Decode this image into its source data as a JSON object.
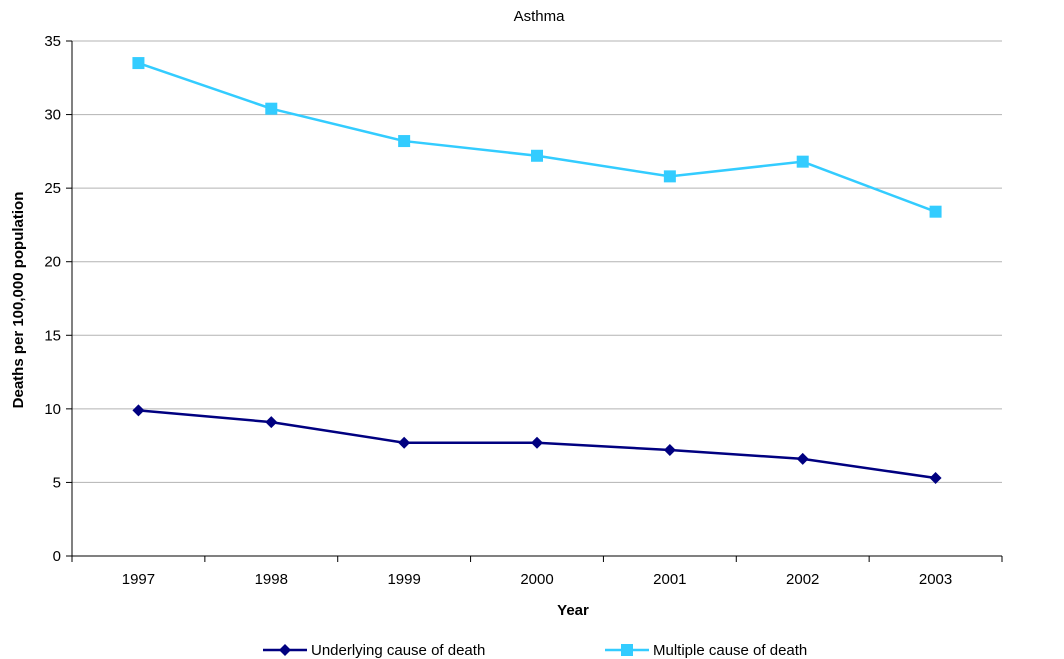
{
  "chart_data": {
    "type": "line",
    "title": "Asthma",
    "xlabel": "Year",
    "ylabel": "Deaths per 100,000 population",
    "categories": [
      "1997",
      "1998",
      "1999",
      "2000",
      "2001",
      "2002",
      "2003"
    ],
    "ylim": [
      0,
      35
    ],
    "yticks": [
      0,
      5,
      10,
      15,
      20,
      25,
      30,
      35
    ],
    "grid": true,
    "legend_position": "bottom",
    "series": [
      {
        "name": "Underlying cause of death",
        "values": [
          9.9,
          9.1,
          7.7,
          7.7,
          7.2,
          6.6,
          5.3
        ],
        "color": "#000080",
        "marker": "diamond"
      },
      {
        "name": "Multiple cause of death",
        "values": [
          33.5,
          30.4,
          28.2,
          27.2,
          25.8,
          26.8,
          23.4
        ],
        "color": "#33CCFF",
        "marker": "square"
      }
    ]
  }
}
